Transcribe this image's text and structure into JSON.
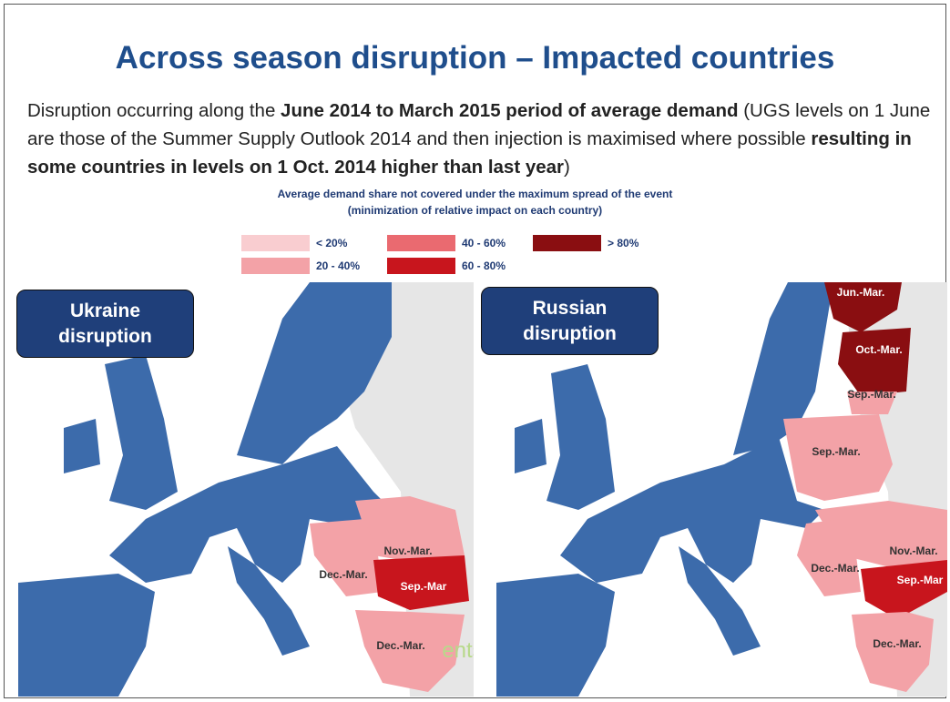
{
  "title": "Across season disruption – Impacted countries",
  "intro": [
    {
      "text": "Disruption occurring along the ",
      "bold": false
    },
    {
      "text": "June 2014 to March 2015 period of average demand",
      "bold": true
    },
    {
      "text": " (UGS levels on 1 June are those of the Summer Supply Outlook 2014 and then injection is maximised where possible ",
      "bold": false
    },
    {
      "text": "resulting in some countries in levels on 1 Oct. 2014 higher than last year",
      "bold": true
    },
    {
      "text": ")",
      "bold": false
    }
  ],
  "legend": {
    "title": "Average demand share not covered under the maximum spread of the event",
    "subtitle": "(minimization of relative impact on each country)",
    "items": [
      {
        "label": "< 20%",
        "color": "#f9cdd0"
      },
      {
        "label": "20 - 40%",
        "color": "#f3a2a7"
      },
      {
        "label": "40 - 60%",
        "color": "#ea6a70"
      },
      {
        "label": "60 - 80%",
        "color": "#c8151d"
      },
      {
        "label": "> 80%",
        "color": "#8a0e11"
      }
    ]
  },
  "maps": [
    {
      "name": "Ukraine disruption",
      "regions": [
        {
          "label": "Nov.-Mar.",
          "color": "#f3a2a7"
        },
        {
          "label": "Dec.-Mar.",
          "color": "#f3a2a7"
        },
        {
          "label": "Sep.-Mar",
          "color": "#c8151d"
        },
        {
          "label": "Dec.-Mar.",
          "color": "#f3a2a7"
        }
      ]
    },
    {
      "name": "Russian disruption",
      "regions": [
        {
          "label": "Jun.-Mar.",
          "color": "#8a0e11"
        },
        {
          "label": "Oct.-Mar.",
          "color": "#8a0e11"
        },
        {
          "label": "Sep.-Mar.",
          "color": "#f3a2a7"
        },
        {
          "label": "Sep.-Mar.",
          "color": "#f3a2a7"
        },
        {
          "label": "Nov.-Mar.",
          "color": "#f3a2a7"
        },
        {
          "label": "Dec.-Mar.",
          "color": "#f3a2a7"
        },
        {
          "label": "Sep.-Mar",
          "color": "#c8151d"
        },
        {
          "label": "Dec.-Mar.",
          "color": "#f3a2a7"
        }
      ]
    }
  ],
  "watermark": "ents"
}
